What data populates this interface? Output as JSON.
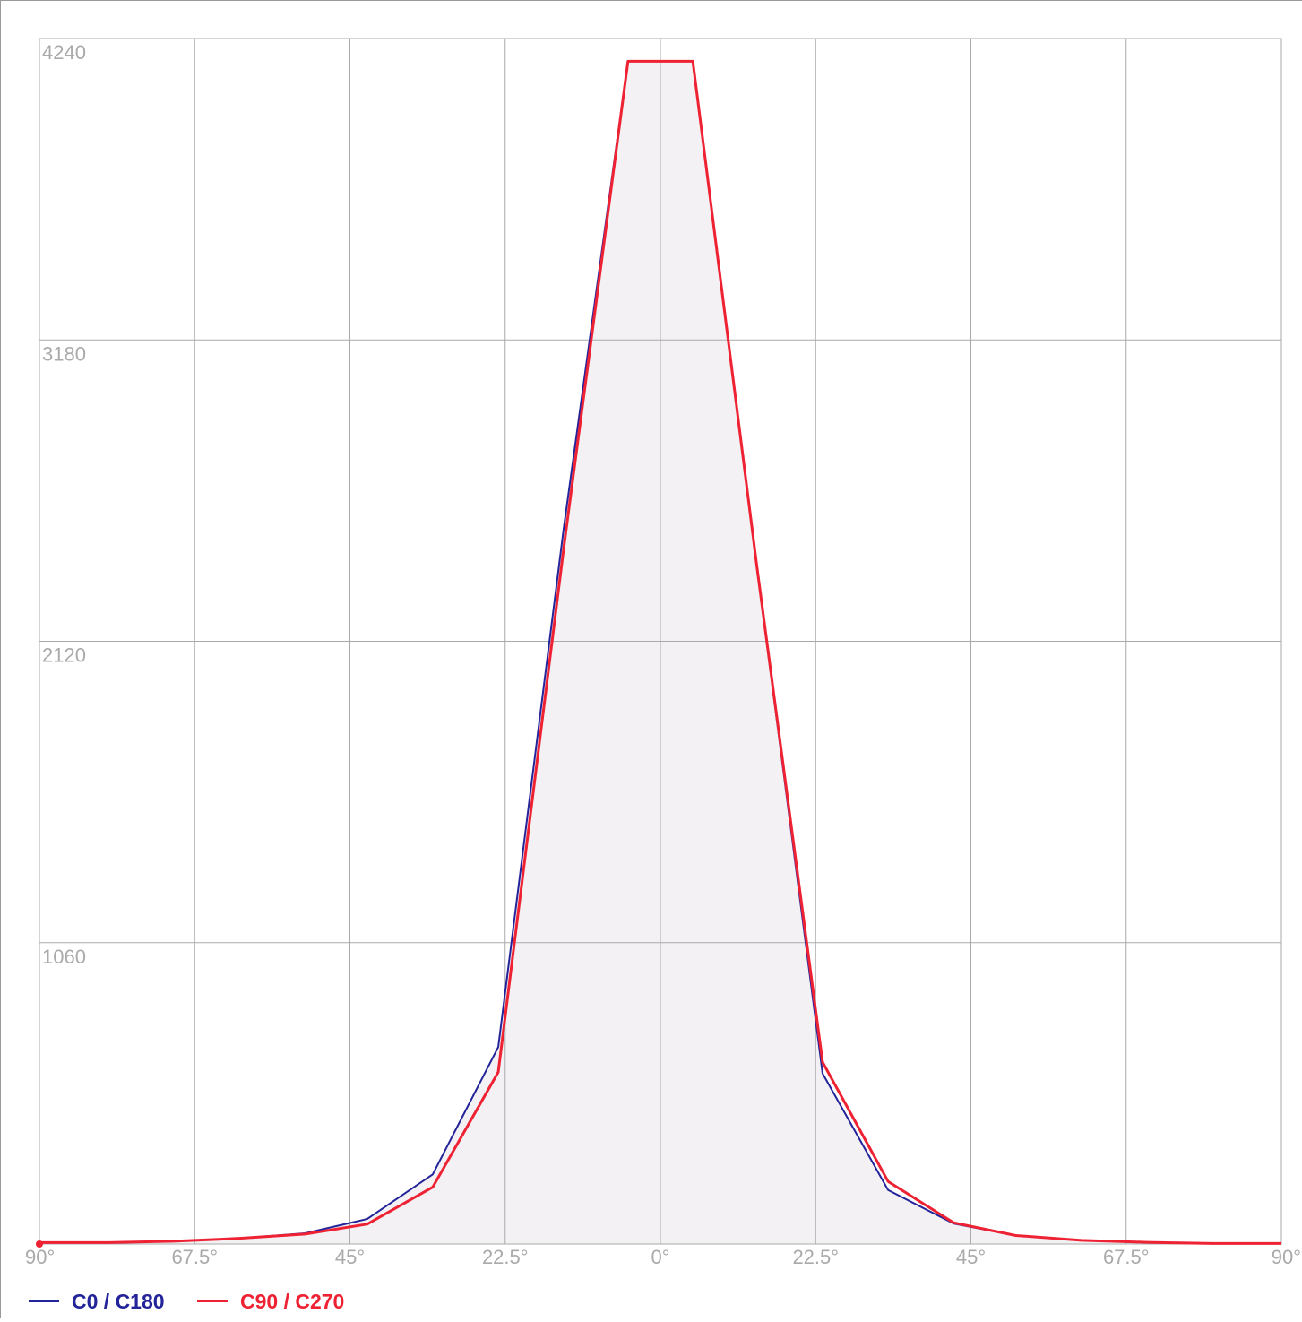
{
  "chart_data": {
    "type": "line",
    "x": [
      -90,
      -80,
      -70.5,
      -61,
      -51.5,
      -42.5,
      -33,
      -23.5,
      -14,
      -4.7,
      4.7,
      14,
      23.5,
      33,
      42.5,
      51.5,
      61,
      70.5,
      80,
      90
    ],
    "series": [
      {
        "name": "C0 / C180",
        "color": "#23239a",
        "values": [
          5,
          5,
          10,
          20,
          38,
          88,
          245,
          693,
          2520,
          4160,
          4160,
          2380,
          600,
          190,
          72,
          30,
          13,
          6,
          2,
          2
        ]
      },
      {
        "name": "C90 / C270",
        "color": "#ee2233",
        "values": [
          5,
          5,
          10,
          20,
          35,
          70,
          200,
          605,
          2450,
          4160,
          4160,
          2380,
          640,
          220,
          75,
          30,
          13,
          6,
          2,
          2
        ]
      }
    ],
    "xlim": [
      -90,
      90
    ],
    "xticks": [
      {
        "value": -90,
        "label": "90°"
      },
      {
        "value": -67.5,
        "label": "67.5°"
      },
      {
        "value": -45,
        "label": "45°"
      },
      {
        "value": -22.5,
        "label": "22.5°"
      },
      {
        "value": 0,
        "label": "0°"
      },
      {
        "value": 22.5,
        "label": "22.5°"
      },
      {
        "value": 45,
        "label": "45°"
      },
      {
        "value": 67.5,
        "label": "67.5°"
      },
      {
        "value": 90,
        "label": "90°"
      }
    ],
    "ylim": [
      0,
      4240
    ],
    "yticks": [
      1060,
      2120,
      3180,
      4240
    ],
    "grid": true,
    "area_color": "#f3f1f4"
  }
}
